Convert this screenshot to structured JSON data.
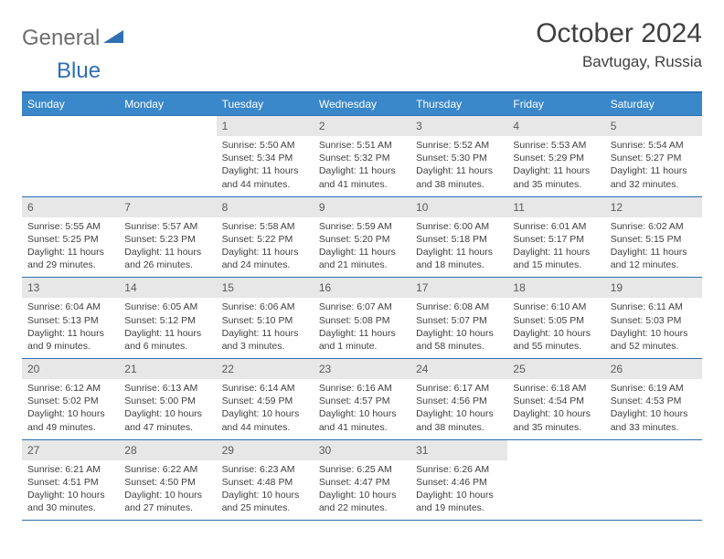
{
  "logo": {
    "word1": "General",
    "word2": "Blue",
    "icon_color": "#2f6fb3",
    "text1_color": "#6e6e6e",
    "text2_color": "#2f6fb3"
  },
  "header": {
    "title": "October 2024",
    "location": "Bavtugay, Russia"
  },
  "colors": {
    "header_bg": "#3a87c9",
    "border": "#2f6fb3",
    "daynum_bg": "#e7e7e7",
    "text": "#404040"
  },
  "dayNames": [
    "Sunday",
    "Monday",
    "Tuesday",
    "Wednesday",
    "Thursday",
    "Friday",
    "Saturday"
  ],
  "weeks": [
    [
      null,
      null,
      {
        "n": "1",
        "sr": "Sunrise: 5:50 AM",
        "ss": "Sunset: 5:34 PM",
        "dl": "Daylight: 11 hours and 44 minutes."
      },
      {
        "n": "2",
        "sr": "Sunrise: 5:51 AM",
        "ss": "Sunset: 5:32 PM",
        "dl": "Daylight: 11 hours and 41 minutes."
      },
      {
        "n": "3",
        "sr": "Sunrise: 5:52 AM",
        "ss": "Sunset: 5:30 PM",
        "dl": "Daylight: 11 hours and 38 minutes."
      },
      {
        "n": "4",
        "sr": "Sunrise: 5:53 AM",
        "ss": "Sunset: 5:29 PM",
        "dl": "Daylight: 11 hours and 35 minutes."
      },
      {
        "n": "5",
        "sr": "Sunrise: 5:54 AM",
        "ss": "Sunset: 5:27 PM",
        "dl": "Daylight: 11 hours and 32 minutes."
      }
    ],
    [
      {
        "n": "6",
        "sr": "Sunrise: 5:55 AM",
        "ss": "Sunset: 5:25 PM",
        "dl": "Daylight: 11 hours and 29 minutes."
      },
      {
        "n": "7",
        "sr": "Sunrise: 5:57 AM",
        "ss": "Sunset: 5:23 PM",
        "dl": "Daylight: 11 hours and 26 minutes."
      },
      {
        "n": "8",
        "sr": "Sunrise: 5:58 AM",
        "ss": "Sunset: 5:22 PM",
        "dl": "Daylight: 11 hours and 24 minutes."
      },
      {
        "n": "9",
        "sr": "Sunrise: 5:59 AM",
        "ss": "Sunset: 5:20 PM",
        "dl": "Daylight: 11 hours and 21 minutes."
      },
      {
        "n": "10",
        "sr": "Sunrise: 6:00 AM",
        "ss": "Sunset: 5:18 PM",
        "dl": "Daylight: 11 hours and 18 minutes."
      },
      {
        "n": "11",
        "sr": "Sunrise: 6:01 AM",
        "ss": "Sunset: 5:17 PM",
        "dl": "Daylight: 11 hours and 15 minutes."
      },
      {
        "n": "12",
        "sr": "Sunrise: 6:02 AM",
        "ss": "Sunset: 5:15 PM",
        "dl": "Daylight: 11 hours and 12 minutes."
      }
    ],
    [
      {
        "n": "13",
        "sr": "Sunrise: 6:04 AM",
        "ss": "Sunset: 5:13 PM",
        "dl": "Daylight: 11 hours and 9 minutes."
      },
      {
        "n": "14",
        "sr": "Sunrise: 6:05 AM",
        "ss": "Sunset: 5:12 PM",
        "dl": "Daylight: 11 hours and 6 minutes."
      },
      {
        "n": "15",
        "sr": "Sunrise: 6:06 AM",
        "ss": "Sunset: 5:10 PM",
        "dl": "Daylight: 11 hours and 3 minutes."
      },
      {
        "n": "16",
        "sr": "Sunrise: 6:07 AM",
        "ss": "Sunset: 5:08 PM",
        "dl": "Daylight: 11 hours and 1 minute."
      },
      {
        "n": "17",
        "sr": "Sunrise: 6:08 AM",
        "ss": "Sunset: 5:07 PM",
        "dl": "Daylight: 10 hours and 58 minutes."
      },
      {
        "n": "18",
        "sr": "Sunrise: 6:10 AM",
        "ss": "Sunset: 5:05 PM",
        "dl": "Daylight: 10 hours and 55 minutes."
      },
      {
        "n": "19",
        "sr": "Sunrise: 6:11 AM",
        "ss": "Sunset: 5:03 PM",
        "dl": "Daylight: 10 hours and 52 minutes."
      }
    ],
    [
      {
        "n": "20",
        "sr": "Sunrise: 6:12 AM",
        "ss": "Sunset: 5:02 PM",
        "dl": "Daylight: 10 hours and 49 minutes."
      },
      {
        "n": "21",
        "sr": "Sunrise: 6:13 AM",
        "ss": "Sunset: 5:00 PM",
        "dl": "Daylight: 10 hours and 47 minutes."
      },
      {
        "n": "22",
        "sr": "Sunrise: 6:14 AM",
        "ss": "Sunset: 4:59 PM",
        "dl": "Daylight: 10 hours and 44 minutes."
      },
      {
        "n": "23",
        "sr": "Sunrise: 6:16 AM",
        "ss": "Sunset: 4:57 PM",
        "dl": "Daylight: 10 hours and 41 minutes."
      },
      {
        "n": "24",
        "sr": "Sunrise: 6:17 AM",
        "ss": "Sunset: 4:56 PM",
        "dl": "Daylight: 10 hours and 38 minutes."
      },
      {
        "n": "25",
        "sr": "Sunrise: 6:18 AM",
        "ss": "Sunset: 4:54 PM",
        "dl": "Daylight: 10 hours and 35 minutes."
      },
      {
        "n": "26",
        "sr": "Sunrise: 6:19 AM",
        "ss": "Sunset: 4:53 PM",
        "dl": "Daylight: 10 hours and 33 minutes."
      }
    ],
    [
      {
        "n": "27",
        "sr": "Sunrise: 6:21 AM",
        "ss": "Sunset: 4:51 PM",
        "dl": "Daylight: 10 hours and 30 minutes."
      },
      {
        "n": "28",
        "sr": "Sunrise: 6:22 AM",
        "ss": "Sunset: 4:50 PM",
        "dl": "Daylight: 10 hours and 27 minutes."
      },
      {
        "n": "29",
        "sr": "Sunrise: 6:23 AM",
        "ss": "Sunset: 4:48 PM",
        "dl": "Daylight: 10 hours and 25 minutes."
      },
      {
        "n": "30",
        "sr": "Sunrise: 6:25 AM",
        "ss": "Sunset: 4:47 PM",
        "dl": "Daylight: 10 hours and 22 minutes."
      },
      {
        "n": "31",
        "sr": "Sunrise: 6:26 AM",
        "ss": "Sunset: 4:46 PM",
        "dl": "Daylight: 10 hours and 19 minutes."
      },
      null,
      null
    ]
  ]
}
